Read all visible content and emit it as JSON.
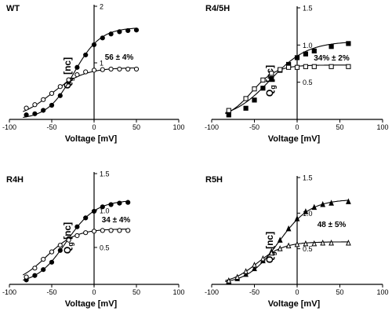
{
  "figure": {
    "colors": {
      "ink": "#000000",
      "paper": "#ffffff"
    }
  },
  "chart_data": [
    {
      "type": "scatter",
      "title": "WT",
      "xlabel": "Voltage [mV]",
      "ylabel": "Qg [nc]",
      "xlim": [
        -100,
        100
      ],
      "ylim": [
        0,
        2
      ],
      "xticks": [
        -100,
        -50,
        0,
        50,
        100
      ],
      "yticks": [
        1,
        2
      ],
      "annotation": "56 ± 4%",
      "grid": false,
      "series": [
        {
          "marker": "filled-circle",
          "x": [
            -80,
            -70,
            -60,
            -50,
            -40,
            -30,
            -20,
            -10,
            0,
            10,
            20,
            30,
            40,
            50
          ],
          "y": [
            0.08,
            0.1,
            0.16,
            0.25,
            0.42,
            0.66,
            0.92,
            1.14,
            1.32,
            1.44,
            1.51,
            1.55,
            1.57,
            1.58
          ]
        },
        {
          "marker": "open-circle",
          "x": [
            -80,
            -70,
            -60,
            -50,
            -40,
            -30,
            -20,
            -10,
            0,
            10,
            20,
            30,
            40,
            50
          ],
          "y": [
            0.2,
            0.26,
            0.35,
            0.46,
            0.58,
            0.7,
            0.79,
            0.84,
            0.87,
            0.88,
            0.89,
            0.89,
            0.89,
            0.89
          ]
        }
      ]
    },
    {
      "type": "scatter",
      "title": "R4/5H",
      "xlabel": "Voltage [mV]",
      "ylabel": "Qg [nc]",
      "xlim": [
        -100,
        100
      ],
      "ylim": [
        0,
        1.5
      ],
      "xticks": [
        -100,
        -50,
        0,
        50,
        100
      ],
      "yticks": [
        0.5,
        1.0,
        1.5
      ],
      "ytick_labels": [
        "0.5",
        "1.0",
        "1.5"
      ],
      "annotation": "34% ± 2%",
      "grid": false,
      "series": [
        {
          "marker": "filled-square",
          "x": [
            -80,
            -60,
            -50,
            -40,
            -30,
            -20,
            -10,
            0,
            10,
            20,
            40,
            60
          ],
          "y": [
            0.06,
            0.15,
            0.26,
            0.42,
            0.55,
            0.66,
            0.74,
            0.83,
            0.88,
            0.92,
            0.98,
            1.02
          ]
        },
        {
          "marker": "open-square",
          "x": [
            -80,
            -60,
            -50,
            -40,
            -30,
            -20,
            -10,
            0,
            10,
            20,
            40,
            60
          ],
          "y": [
            0.12,
            0.28,
            0.41,
            0.53,
            0.62,
            0.67,
            0.7,
            0.7,
            0.71,
            0.71,
            0.71,
            0.71
          ]
        }
      ]
    },
    {
      "type": "scatter",
      "title": "R4H",
      "xlabel": "Voltage [mV]",
      "ylabel": "Qg [nc]",
      "xlim": [
        -100,
        100
      ],
      "ylim": [
        0,
        1.5
      ],
      "xticks": [
        -100,
        -50,
        0,
        50,
        100
      ],
      "yticks": [
        0.5,
        1.0,
        1.5
      ],
      "ytick_labels": [
        "0.5",
        "1.0",
        "1.5"
      ],
      "annotation": "34 ± 4%",
      "grid": false,
      "series": [
        {
          "marker": "filled-circle",
          "x": [
            -80,
            -70,
            -60,
            -50,
            -40,
            -30,
            -20,
            -10,
            0,
            10,
            20,
            30,
            40
          ],
          "y": [
            0.06,
            0.12,
            0.2,
            0.3,
            0.46,
            0.62,
            0.78,
            0.9,
            0.99,
            1.05,
            1.08,
            1.1,
            1.11
          ]
        },
        {
          "marker": "open-circle",
          "x": [
            -80,
            -70,
            -60,
            -50,
            -40,
            -30,
            -20,
            -10,
            0,
            10,
            20,
            30,
            40
          ],
          "y": [
            0.1,
            0.22,
            0.34,
            0.44,
            0.53,
            0.6,
            0.66,
            0.7,
            0.72,
            0.73,
            0.73,
            0.73,
            0.73
          ]
        }
      ]
    },
    {
      "type": "scatter",
      "title": "R5H",
      "xlabel": "Voltage [mV]",
      "ylabel": "Qg [nc]",
      "xlim": [
        -100,
        100
      ],
      "ylim": [
        0,
        1.5
      ],
      "xticks": [
        -100,
        -50,
        0,
        50,
        100
      ],
      "yticks": [
        0.5,
        1.0,
        1.5
      ],
      "ytick_labels": [
        "0.5",
        "1.0",
        "1.5"
      ],
      "annotation": "48 ± 5%",
      "grid": false,
      "series": [
        {
          "marker": "filled-triangle",
          "x": [
            -80,
            -70,
            -60,
            -50,
            -40,
            -30,
            -20,
            -10,
            0,
            10,
            20,
            30,
            40,
            60
          ],
          "y": [
            0.04,
            0.08,
            0.14,
            0.22,
            0.33,
            0.46,
            0.62,
            0.78,
            0.92,
            1.02,
            1.08,
            1.12,
            1.14,
            1.16
          ]
        },
        {
          "marker": "open-triangle",
          "x": [
            -80,
            -70,
            -60,
            -50,
            -40,
            -30,
            -20,
            -10,
            0,
            10,
            20,
            30,
            40,
            60
          ],
          "y": [
            0.05,
            0.1,
            0.18,
            0.27,
            0.36,
            0.44,
            0.5,
            0.54,
            0.56,
            0.57,
            0.57,
            0.58,
            0.58,
            0.58
          ]
        }
      ]
    }
  ]
}
